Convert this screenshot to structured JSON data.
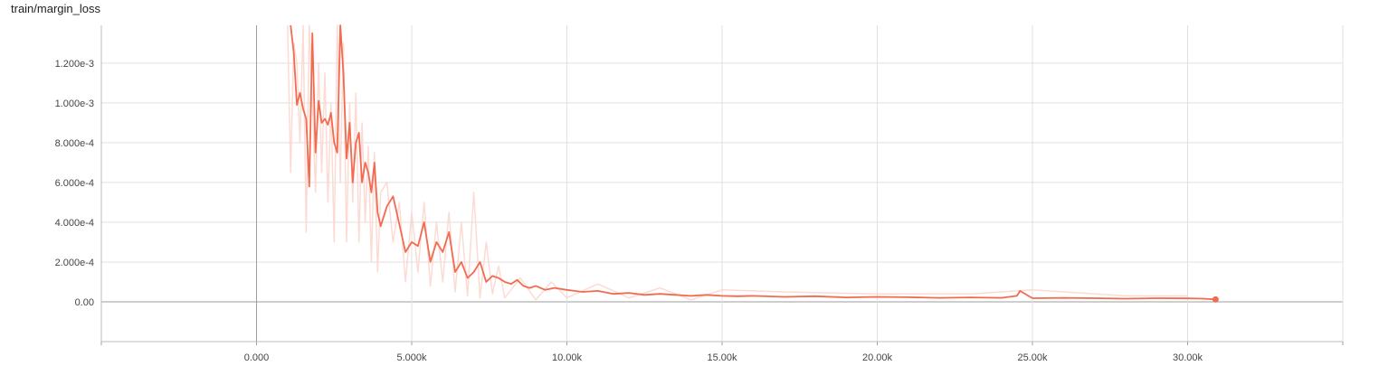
{
  "chart_data": {
    "type": "line",
    "title": "train/margin_loss",
    "xlabel": "",
    "ylabel": "",
    "xlim": [
      -5000,
      35000
    ],
    "ylim": [
      -0.0002,
      0.00139
    ],
    "grid": true,
    "x_ticks": [
      {
        "value": 0,
        "label": "0.000"
      },
      {
        "value": 5000,
        "label": "5.000k"
      },
      {
        "value": 10000,
        "label": "10.00k"
      },
      {
        "value": 15000,
        "label": "15.00k"
      },
      {
        "value": 20000,
        "label": "20.00k"
      },
      {
        "value": 25000,
        "label": "25.00k"
      },
      {
        "value": 30000,
        "label": "30.00k"
      }
    ],
    "y_ticks": [
      {
        "value": 0,
        "label": "0.00"
      },
      {
        "value": 0.0002,
        "label": "2.000e-4"
      },
      {
        "value": 0.0004,
        "label": "4.000e-4"
      },
      {
        "value": 0.0006,
        "label": "6.000e-4"
      },
      {
        "value": 0.0008,
        "label": "8.000e-4"
      },
      {
        "value": 0.001,
        "label": "1.000e-3"
      },
      {
        "value": 0.0012,
        "label": "1.200e-3"
      }
    ],
    "colors": {
      "smoothed": "#f26a4f",
      "raw": "#fcd7cf",
      "grid": "#e0e0e0",
      "axis": "#9e9e9e"
    },
    "series": [
      {
        "role": "smoothed",
        "x": [
          1100,
          1200,
          1300,
          1400,
          1500,
          1600,
          1700,
          1800,
          1900,
          2000,
          2100,
          2200,
          2300,
          2400,
          2500,
          2600,
          2700,
          2800,
          2900,
          3000,
          3100,
          3200,
          3300,
          3400,
          3500,
          3600,
          3700,
          3800,
          3900,
          4000,
          4200,
          4400,
          4600,
          4800,
          5000,
          5200,
          5400,
          5600,
          5800,
          6000,
          6200,
          6400,
          6600,
          6800,
          7000,
          7200,
          7400,
          7600,
          7800,
          8000,
          8200,
          8400,
          8600,
          8800,
          9000,
          9300,
          9600,
          10000,
          10500,
          11000,
          11500,
          12000,
          12500,
          13000,
          13500,
          14000,
          14500,
          15000,
          15500,
          16000,
          17000,
          18000,
          19000,
          20000,
          21000,
          22000,
          23000,
          24000,
          24500,
          24600,
          25000,
          26000,
          27000,
          28000,
          29000,
          30000,
          30500,
          30900
        ],
        "y": [
          0.00139,
          0.00125,
          0.00099,
          0.00105,
          0.00097,
          0.00092,
          0.00058,
          0.00135,
          0.00075,
          0.00101,
          0.0009,
          0.00092,
          0.00089,
          0.00095,
          0.0008,
          0.00075,
          0.00139,
          0.00115,
          0.00072,
          0.0009,
          0.0006,
          0.0008,
          0.00085,
          0.0006,
          0.0007,
          0.00065,
          0.00055,
          0.0007,
          0.00045,
          0.00038,
          0.00048,
          0.00053,
          0.00039,
          0.00025,
          0.0003,
          0.00028,
          0.0004,
          0.0002,
          0.0003,
          0.00025,
          0.00035,
          0.00015,
          0.0002,
          0.00012,
          0.00015,
          0.0002,
          0.0001,
          0.00013,
          0.00012,
          0.0001,
          9e-05,
          0.00011,
          8e-05,
          7e-05,
          8e-05,
          6e-05,
          7e-05,
          6e-05,
          5e-05,
          5.5e-05,
          4e-05,
          4.5e-05,
          3.5e-05,
          4e-05,
          3.5e-05,
          3e-05,
          3.5e-05,
          3e-05,
          2.8e-05,
          3e-05,
          2.5e-05,
          2.8e-05,
          2.2e-05,
          2.5e-05,
          2.3e-05,
          2e-05,
          2.2e-05,
          2e-05,
          3e-05,
          5.5e-05,
          1.8e-05,
          2e-05,
          1.8e-05,
          1.6e-05,
          1.8e-05,
          1.7e-05,
          1.6e-05,
          1.2e-05
        ]
      },
      {
        "role": "raw",
        "x": [
          1000,
          1100,
          1200,
          1300,
          1400,
          1500,
          1600,
          1700,
          1800,
          1900,
          2000,
          2100,
          2200,
          2300,
          2400,
          2500,
          2600,
          2700,
          2800,
          2900,
          3000,
          3100,
          3200,
          3300,
          3400,
          3500,
          3600,
          3700,
          3800,
          3900,
          4000,
          4200,
          4400,
          4600,
          4800,
          5000,
          5200,
          5400,
          5600,
          5800,
          6000,
          6200,
          6400,
          6600,
          6800,
          7000,
          7200,
          7400,
          7600,
          7800,
          8000,
          8500,
          9000,
          9500,
          10000,
          11000,
          12000,
          13000,
          14000,
          15000,
          17000,
          20000,
          23000,
          25000,
          28000,
          30000
        ],
        "y": [
          0.00139,
          0.00065,
          0.0013,
          0.0012,
          0.0008,
          0.00139,
          0.00035,
          0.00139,
          0.001,
          0.00055,
          0.0012,
          0.00065,
          0.00115,
          0.0005,
          0.001,
          0.0003,
          0.00139,
          0.0006,
          0.0013,
          0.0003,
          0.001,
          0.0005,
          0.00105,
          0.0003,
          0.0009,
          0.0004,
          0.00078,
          0.0002,
          0.00075,
          0.00015,
          0.00055,
          0.0006,
          0.0003,
          0.0005,
          0.0001,
          0.00045,
          0.00015,
          0.0005,
          8e-05,
          0.0004,
          0.0001,
          0.00045,
          5e-05,
          0.0004,
          3e-05,
          0.00055,
          2e-05,
          0.0003,
          4e-05,
          0.00018,
          2e-05,
          0.00012,
          1e-05,
          0.0001,
          2e-05,
          9e-05,
          2e-05,
          7e-05,
          1e-05,
          6e-05,
          5e-05,
          4e-05,
          4e-05,
          6e-05,
          3e-05,
          3e-05
        ]
      }
    ]
  }
}
